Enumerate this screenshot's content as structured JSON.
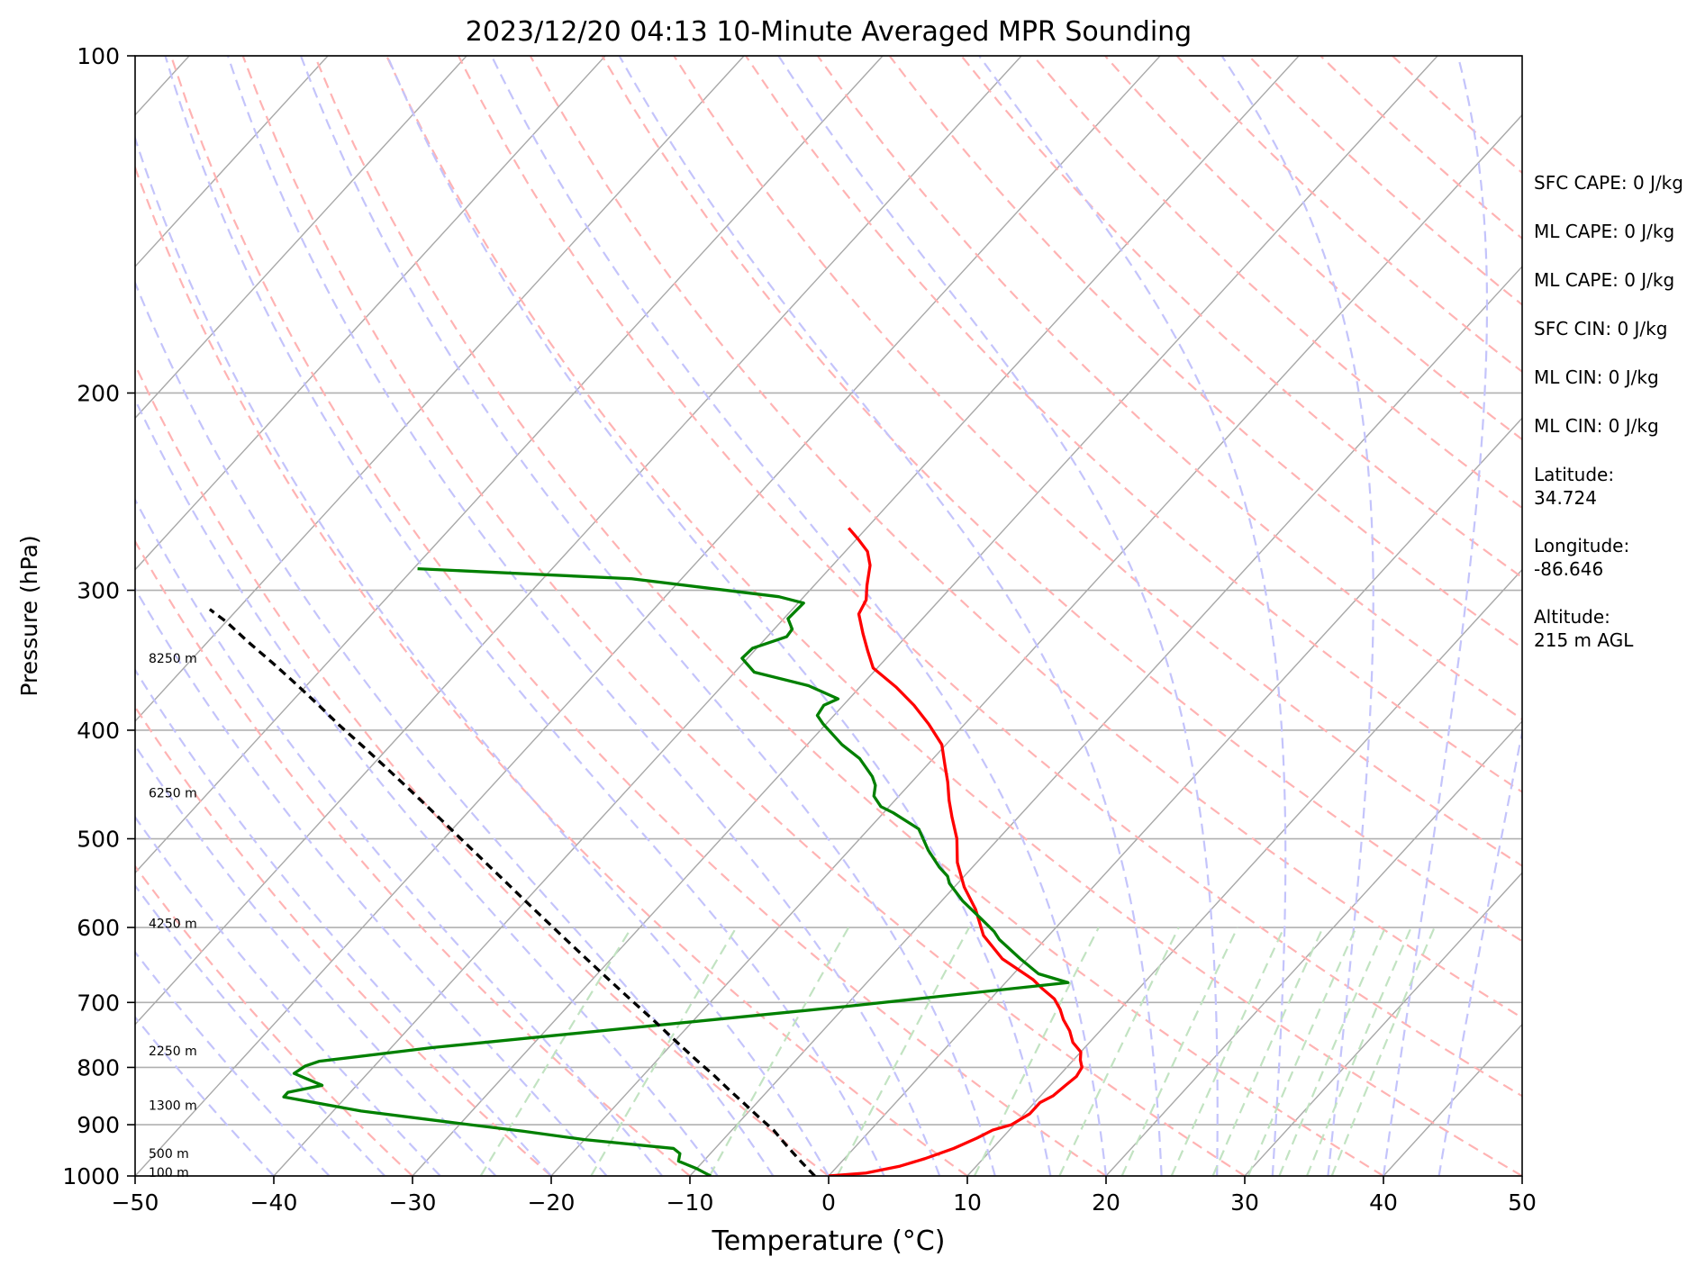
{
  "chart_data": {
    "type": "line",
    "title": "2023/12/20 04:13 10-Minute Averaged MPR Sounding",
    "xlabel": "Temperature (°C)",
    "ylabel": "Pressure (hPa)",
    "xlim": [
      -50,
      50
    ],
    "ylim": [
      1000,
      100
    ],
    "y_scale": "log",
    "skew_slope_deg_per_decade": 73.9,
    "grid": true,
    "x_ticks": [
      -50,
      -40,
      -30,
      -20,
      -10,
      0,
      10,
      20,
      30,
      40,
      50
    ],
    "x_tick_labels": [
      "−50",
      "−40",
      "−30",
      "−20",
      "−10",
      "0",
      "10",
      "20",
      "30",
      "40",
      "50"
    ],
    "y_ticks": [
      100,
      200,
      300,
      400,
      500,
      600,
      700,
      800,
      900,
      1000
    ],
    "y_tick_labels": [
      "100",
      "200",
      "300",
      "400",
      "500",
      "600",
      "700",
      "800",
      "900",
      "1000"
    ],
    "height_labels": [
      {
        "text": "8250 m",
        "p": 345
      },
      {
        "text": "6250 m",
        "p": 455
      },
      {
        "text": "4250 m",
        "p": 595
      },
      {
        "text": "2250 m",
        "p": 773
      },
      {
        "text": "1300 m",
        "p": 865
      },
      {
        "text": "500 m",
        "p": 955
      },
      {
        "text": "100 m",
        "p": 993
      }
    ],
    "annotations": [
      {
        "lines": [
          "SFC CAPE: 0 J/kg"
        ]
      },
      {
        "lines": [
          "ML CAPE: 0 J/kg"
        ]
      },
      {
        "lines": [
          "ML CAPE: 0 J/kg"
        ]
      },
      {
        "lines": [
          "SFC CIN: 0 J/kg"
        ]
      },
      {
        "lines": [
          "ML CIN: 0 J/kg"
        ]
      },
      {
        "lines": [
          "ML CIN: 0 J/kg"
        ]
      },
      {
        "lines": [
          "Latitude:",
          "34.724"
        ]
      },
      {
        "lines": [
          "Longitude:",
          "-86.646"
        ]
      },
      {
        "lines": [
          "Altitude:",
          "215 m AGL"
        ]
      }
    ],
    "series": [
      {
        "color": "#ff0000",
        "points": [
          [
            0.0,
            1000
          ],
          [
            2.5,
            994
          ],
          [
            4.5,
            980
          ],
          [
            5.8,
            965
          ],
          [
            7.2,
            945
          ],
          [
            8.2,
            925
          ],
          [
            8.8,
            910
          ],
          [
            9.8,
            900
          ],
          [
            10.4,
            880
          ],
          [
            10.4,
            860
          ],
          [
            10.9,
            848
          ],
          [
            11.1,
            830
          ],
          [
            11.3,
            815
          ],
          [
            11.1,
            800
          ],
          [
            10.5,
            788
          ],
          [
            10.0,
            775
          ],
          [
            8.8,
            760
          ],
          [
            7.8,
            742
          ],
          [
            6.6,
            725
          ],
          [
            5.7,
            710
          ],
          [
            4.6,
            695
          ],
          [
            3.0,
            680
          ],
          [
            1.8,
            668
          ],
          [
            -1.8,
            640
          ],
          [
            -4.7,
            610
          ],
          [
            -7.0,
            578
          ],
          [
            -9.3,
            552
          ],
          [
            -11.4,
            525
          ],
          [
            -13.0,
            500
          ],
          [
            -14.8,
            478
          ],
          [
            -16.1,
            462
          ],
          [
            -17.4,
            445
          ],
          [
            -18.7,
            430
          ],
          [
            -20.3,
            412
          ],
          [
            -22.6,
            395
          ],
          [
            -24.9,
            380
          ],
          [
            -27.4,
            366
          ],
          [
            -30.3,
            352
          ],
          [
            -31.8,
            340
          ],
          [
            -33.3,
            328
          ],
          [
            -34.9,
            315
          ],
          [
            -35.3,
            306
          ],
          [
            -36.2,
            297
          ],
          [
            -37.3,
            285
          ],
          [
            -38.4,
            277
          ],
          [
            -39.9,
            270
          ],
          [
            -41.3,
            264
          ]
        ]
      },
      {
        "color": "#008000",
        "points": [
          [
            -8.5,
            1000
          ],
          [
            -9.0,
            995
          ],
          [
            -10.0,
            985
          ],
          [
            -11.8,
            970
          ],
          [
            -12.2,
            955
          ],
          [
            -13.0,
            945
          ],
          [
            -20.0,
            928
          ],
          [
            -25.0,
            912
          ],
          [
            -31.0,
            895
          ],
          [
            -38.0,
            875
          ],
          [
            -44.5,
            850
          ],
          [
            -44.5,
            842
          ],
          [
            -42.5,
            830
          ],
          [
            -45.3,
            810
          ],
          [
            -45.0,
            798
          ],
          [
            -44.3,
            790
          ],
          [
            -37.0,
            768
          ],
          [
            -10.0,
            706
          ],
          [
            4.5,
            672
          ],
          [
            1.8,
            660
          ],
          [
            -0.5,
            640
          ],
          [
            -3.3,
            615
          ],
          [
            -4.2,
            605
          ],
          [
            -5.9,
            590
          ],
          [
            -8.5,
            568
          ],
          [
            -10.6,
            548
          ],
          [
            -11.2,
            540
          ],
          [
            -12.4,
            530
          ],
          [
            -14.3,
            512
          ],
          [
            -16.4,
            490
          ],
          [
            -19.3,
            474
          ],
          [
            -20.6,
            468
          ],
          [
            -21.8,
            458
          ],
          [
            -22.4,
            448
          ],
          [
            -23.2,
            440
          ],
          [
            -25.3,
            424
          ],
          [
            -27.5,
            412
          ],
          [
            -30.2,
            395
          ],
          [
            -31.2,
            388
          ],
          [
            -31.4,
            380
          ],
          [
            -30.8,
            375
          ],
          [
            -33.8,
            365
          ],
          [
            -38.6,
            355
          ],
          [
            -40.4,
            345
          ],
          [
            -40.3,
            338
          ],
          [
            -38.6,
            330
          ],
          [
            -38.7,
            325
          ],
          [
            -39.7,
            318
          ],
          [
            -39.6,
            308
          ],
          [
            -41.8,
            304
          ],
          [
            -53.6,
            293
          ],
          [
            -69.7,
            287
          ]
        ]
      },
      {
        "color": "#000000",
        "dashed": true,
        "points": [
          [
            -1.0,
            1000
          ],
          [
            -3.0,
            970
          ],
          [
            -5.0,
            940
          ],
          [
            -7.0,
            910
          ],
          [
            -9.0,
            885
          ],
          [
            -11.0,
            860
          ],
          [
            -13.0,
            836
          ],
          [
            -15.0,
            812
          ],
          [
            -17.0,
            790
          ],
          [
            -20.0,
            757
          ],
          [
            -23.0,
            725
          ],
          [
            -26.0,
            695
          ],
          [
            -29.0,
            666
          ],
          [
            -32.0,
            638
          ],
          [
            -35.0,
            611
          ],
          [
            -38.0,
            585
          ],
          [
            -41.0,
            560
          ],
          [
            -44.0,
            536
          ],
          [
            -47.0,
            513
          ],
          [
            -50.0,
            491
          ],
          [
            -53.0,
            470
          ],
          [
            -56.0,
            450
          ],
          [
            -59.0,
            431
          ],
          [
            -62.0,
            413
          ],
          [
            -65.0,
            396
          ],
          [
            -68.0,
            379
          ],
          [
            -71.0,
            363
          ],
          [
            -74.0,
            348
          ],
          [
            -77.0,
            334
          ],
          [
            -80.0,
            320
          ],
          [
            -82.0,
            312
          ]
        ]
      }
    ]
  }
}
